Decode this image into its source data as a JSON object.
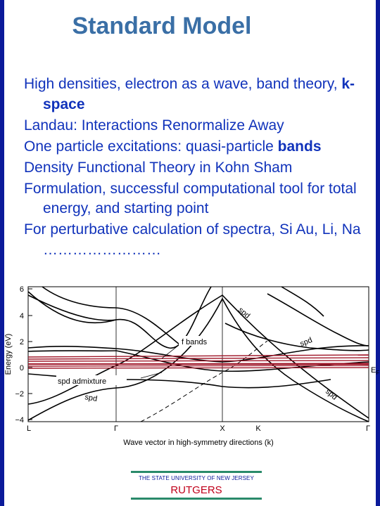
{
  "title": "Standard Model",
  "bullets": [
    {
      "text": "High densities, electron as a wave, band theory, ",
      "bold": "k-space"
    },
    {
      "text": "Landau: Interactions Renormalize Away",
      "bold": ""
    },
    {
      "text": "One particle excitations: quasi-particle ",
      "bold": "bands"
    },
    {
      "text": "Density Functional Theory in Kohn Sham",
      "bold": ""
    },
    {
      "text": "Formulation, successful computational tool for total energy, and starting point",
      "bold": ""
    },
    {
      "text": "For perturbative calculation of spectra, Si Au, Li, Na ……………………",
      "bold": ""
    }
  ],
  "chart": {
    "ylabel": "Energy (eV)",
    "xlabel": "Wave vector in high-symmetry directions (k)",
    "yticks": [
      "6",
      "4",
      "2",
      "0",
      "−2",
      "−4"
    ],
    "xticks": [
      "L",
      "Γ",
      "X",
      "K",
      "Γ"
    ],
    "annotations": {
      "f_bands": "f bands",
      "spd_admixture": "spd admixture",
      "spd_top": "spd",
      "spd_right": "spd",
      "spd_lower_right": "spd",
      "spd_left": "spd",
      "ef": "E",
      "ef_sub": "F"
    },
    "colors": {
      "f_bands": "#a0182a",
      "frame": "#0b1a9a"
    }
  },
  "footer": {
    "university": "THE STATE UNIVERSITY OF NEW JERSEY",
    "name": "RUTGERS"
  }
}
